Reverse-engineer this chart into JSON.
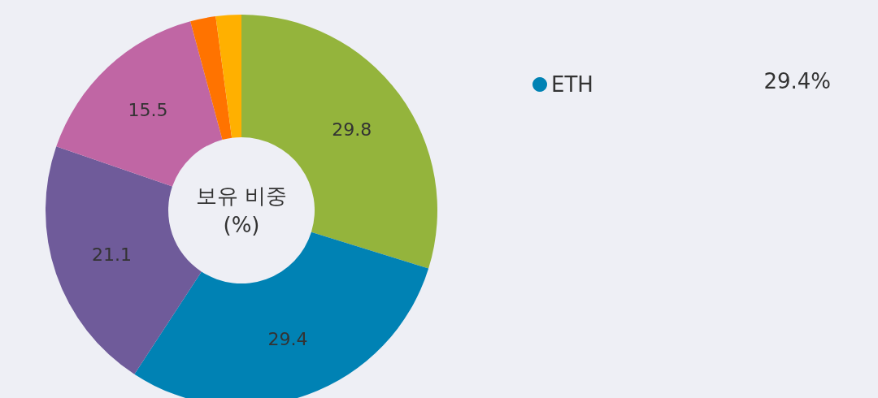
{
  "chart_data": {
    "type": "donut",
    "title": "보유 비중\n(%)",
    "categories": [
      null,
      "ETH",
      null,
      null,
      null,
      null
    ],
    "values": [
      29.8,
      29.4,
      21.1,
      15.5,
      2.1,
      2.1
    ],
    "value_labels": [
      "29.8",
      "29.4",
      "21.1",
      "15.5",
      null,
      null
    ],
    "colors": [
      "#94b43c",
      "#0082b4",
      "#6f5b9a",
      "#c066a4",
      "#ff7300",
      "#ffb000"
    ],
    "legend": "right",
    "annotations": [
      "29.4%"
    ]
  }
}
